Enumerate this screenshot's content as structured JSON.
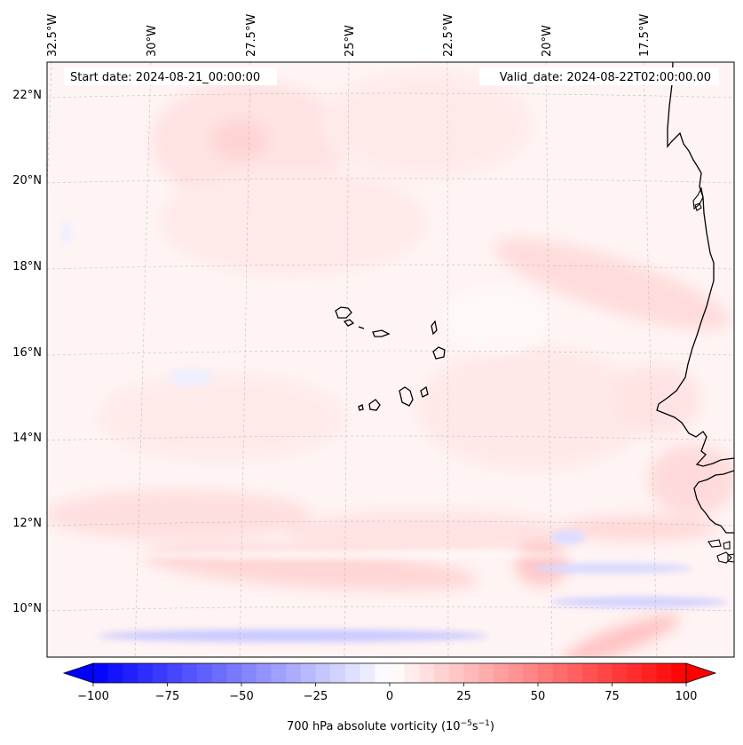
{
  "map": {
    "start_label": "Start date: 2024-08-21_00:00:00",
    "valid_label": "Valid_date: 2024-08-22T02:00:00.00",
    "longitudes": [
      {
        "lon": -32.5,
        "label": "32.5°W"
      },
      {
        "lon": -30,
        "label": "30°W"
      },
      {
        "lon": -27.5,
        "label": "27.5°W"
      },
      {
        "lon": -25,
        "label": "25°W"
      },
      {
        "lon": -22.5,
        "label": "22.5°W"
      },
      {
        "lon": -20,
        "label": "20°W"
      },
      {
        "lon": -17.5,
        "label": "17.5°W"
      }
    ],
    "latitudes": [
      {
        "lat": 22,
        "label": "22°N"
      },
      {
        "lat": 20,
        "label": "20°N"
      },
      {
        "lat": 18,
        "label": "18°N"
      },
      {
        "lat": 16,
        "label": "16°N"
      },
      {
        "lat": 14,
        "label": "14°N"
      },
      {
        "lat": 12,
        "label": "12°N"
      },
      {
        "lat": 10,
        "label": "10°N"
      }
    ],
    "colors": {
      "coastline": "#000000",
      "gridline": "#bbbbbb",
      "neg_max": "#0000ff",
      "pos_max": "#ff0000"
    }
  },
  "colorbar": {
    "min": -100,
    "max": 100,
    "ticks": [
      {
        "value": -100,
        "label": "−100"
      },
      {
        "value": -75,
        "label": "−75"
      },
      {
        "value": -50,
        "label": "−50"
      },
      {
        "value": -25,
        "label": "−25"
      },
      {
        "value": 0,
        "label": "0"
      },
      {
        "value": 25,
        "label": "25"
      },
      {
        "value": 50,
        "label": "50"
      },
      {
        "value": 75,
        "label": "75"
      },
      {
        "value": 100,
        "label": "100"
      }
    ],
    "label_main": "700 hPa absolute vorticity (10",
    "label_sup1": "−5",
    "label_mid": "s",
    "label_sup2": "−1",
    "label_end": ")"
  }
}
